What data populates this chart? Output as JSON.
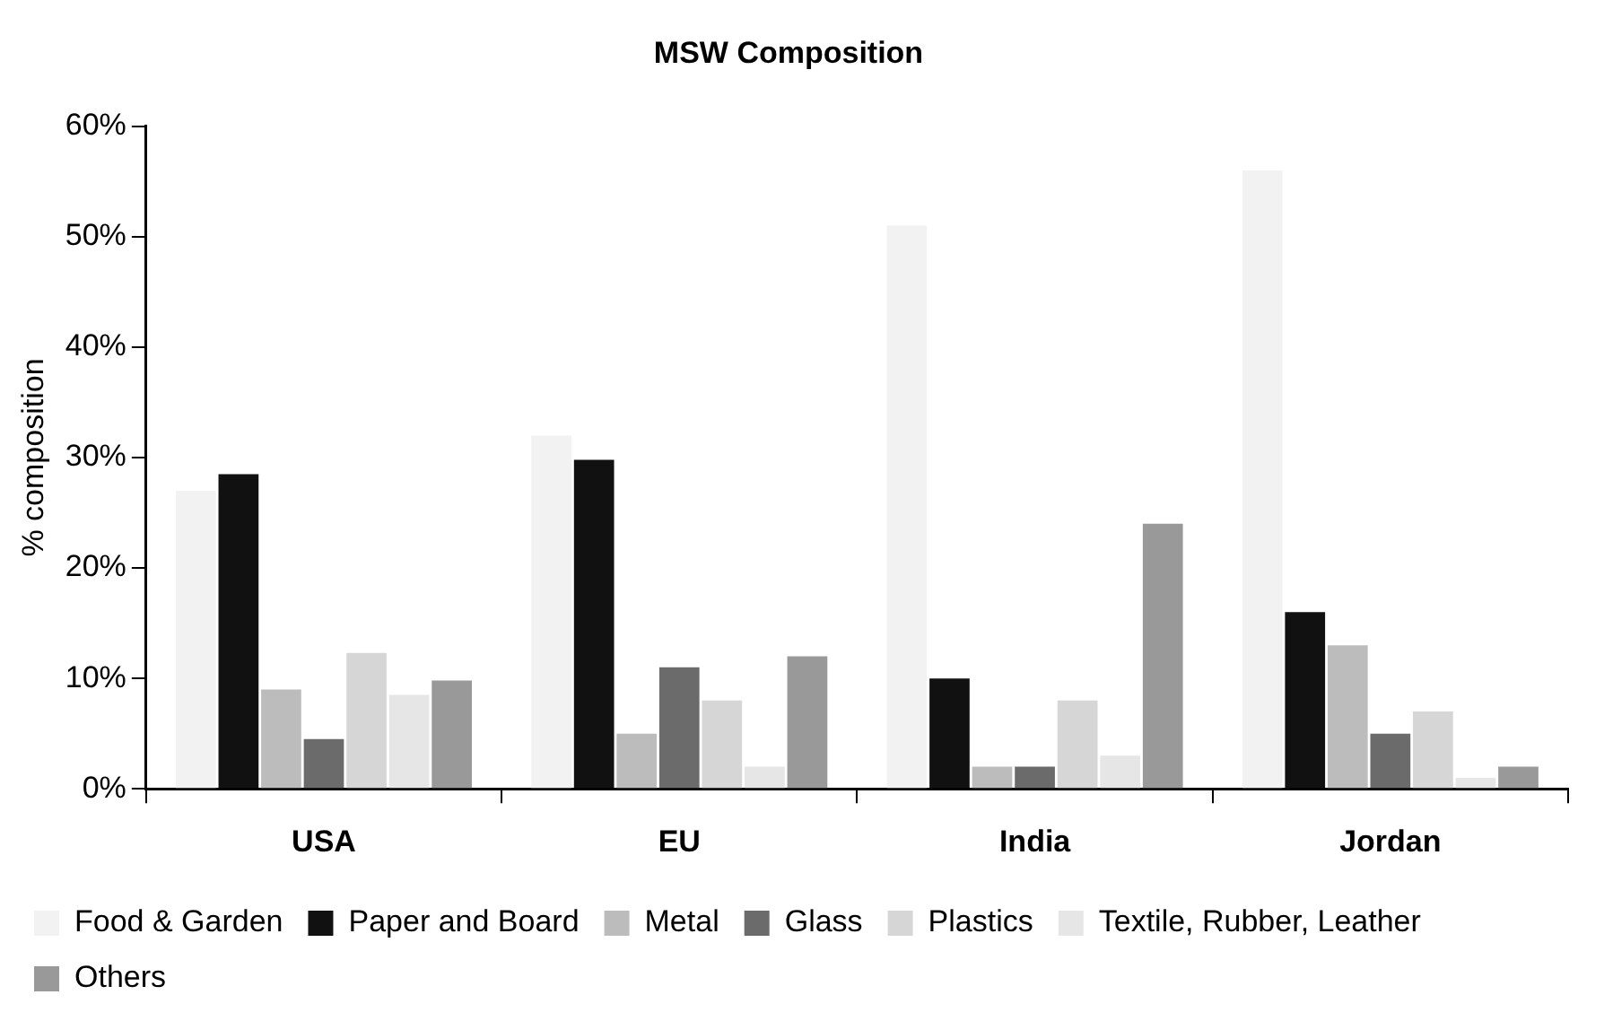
{
  "chart_data": {
    "type": "bar",
    "title": "MSW Composition",
    "ylabel": "% composition",
    "categories": [
      "USA",
      "EU",
      "India",
      "Jordan"
    ],
    "series": [
      {
        "name": "Food & Garden",
        "color": "#f2f2f2",
        "values": [
          27,
          32,
          51,
          56
        ]
      },
      {
        "name": "Paper and Board",
        "color": "#111111",
        "values": [
          28.5,
          29.8,
          10,
          16
        ]
      },
      {
        "name": "Metal",
        "color": "#bcbcbc",
        "values": [
          9,
          5,
          2,
          13
        ]
      },
      {
        "name": "Glass",
        "color": "#6b6b6b",
        "values": [
          4.5,
          11,
          2,
          5
        ]
      },
      {
        "name": "Plastics",
        "color": "#d6d6d6",
        "values": [
          12.3,
          8,
          8,
          7
        ]
      },
      {
        "name": "Textile, Rubber, Leather",
        "color": "#e6e6e6",
        "values": [
          8.5,
          2,
          3,
          1
        ]
      },
      {
        "name": "Others",
        "color": "#999999",
        "values": [
          9.8,
          12,
          24,
          2
        ]
      }
    ],
    "ylim": [
      0,
      60
    ],
    "yticks": [
      {
        "value": 0,
        "label": "0%"
      },
      {
        "value": 10,
        "label": "10%"
      },
      {
        "value": 20,
        "label": "20%"
      },
      {
        "value": 30,
        "label": "30%"
      },
      {
        "value": 40,
        "label": "40%"
      },
      {
        "value": 50,
        "label": "50%"
      },
      {
        "value": 60,
        "label": "60%"
      }
    ],
    "grid": false,
    "legend": "bottom"
  }
}
